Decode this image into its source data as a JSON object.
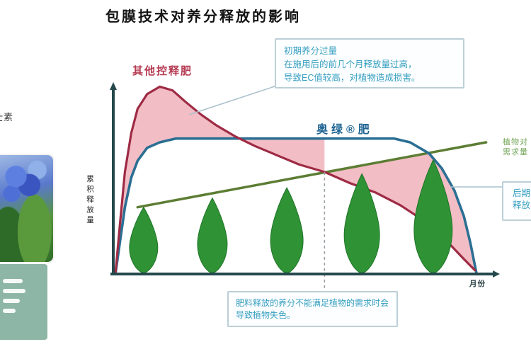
{
  "left_panel": {
    "partial_label": "壮素"
  },
  "chart": {
    "title": "包膜技术对养分释放的影响",
    "curve_labels": {
      "other_crf": "其他控释肥",
      "osmocote": "奥绿®肥"
    },
    "demand_label_lines": [
      "植物对",
      "需求量"
    ],
    "axis": {
      "y_label": "累积释放量",
      "x_label": "月份"
    },
    "callouts": {
      "top": [
        "初期养分过量",
        "在施用后的前几个月释放量过高，",
        "导致EC值较高，对植物造成损害。"
      ],
      "bottom": [
        "肥料释放的养分不能满足植物的需求时会",
        "导致植物失色。"
      ],
      "right": [
        "后期",
        "释放"
      ]
    }
  },
  "chart_data": {
    "type": "area",
    "title": "包膜技术对养分释放的影响",
    "xlabel": "月份",
    "ylabel": "累积释放量",
    "xlim": [
      0,
      12
    ],
    "ylim": [
      0,
      105
    ],
    "grid": false,
    "legend_position": "inline-labels",
    "series": [
      {
        "name": "其他控释肥",
        "color": "#9e2b44",
        "points": [
          [
            0,
            0
          ],
          [
            0.15,
            28
          ],
          [
            0.3,
            55
          ],
          [
            0.5,
            76
          ],
          [
            0.7,
            89
          ],
          [
            1.0,
            97
          ],
          [
            1.4,
            101
          ],
          [
            1.8,
            99
          ],
          [
            2.2,
            93
          ],
          [
            2.7,
            86
          ],
          [
            3.2,
            80
          ],
          [
            3.8,
            74
          ],
          [
            4.4,
            69
          ],
          [
            5.1,
            64
          ],
          [
            5.8,
            59
          ],
          [
            6.6,
            55
          ],
          [
            7.4,
            49
          ],
          [
            8.2,
            44
          ],
          [
            9.0,
            37
          ],
          [
            9.8,
            28
          ],
          [
            10.5,
            17
          ],
          [
            11.0,
            8
          ],
          [
            11.35,
            2
          ]
        ]
      },
      {
        "name": "奥绿®肥",
        "color": "#2b6f93",
        "points": [
          [
            0,
            0
          ],
          [
            0.15,
            18
          ],
          [
            0.3,
            36
          ],
          [
            0.5,
            52
          ],
          [
            0.7,
            61
          ],
          [
            1.0,
            68
          ],
          [
            1.4,
            71
          ],
          [
            1.9,
            73
          ],
          [
            2.5,
            73
          ],
          [
            8.8,
            73
          ],
          [
            9.3,
            71
          ],
          [
            9.9,
            65
          ],
          [
            10.3,
            57
          ],
          [
            10.7,
            45
          ],
          [
            11.0,
            31
          ],
          [
            11.2,
            17
          ],
          [
            11.4,
            0
          ]
        ]
      },
      {
        "name": "植物对养分的需求量",
        "color": "#5c7d33",
        "points": [
          [
            0.7,
            36
          ],
          [
            11.7,
            71
          ]
        ]
      }
    ],
    "fill_color": "#f3bdc5",
    "red_green_cross": {
      "month": 6.6,
      "value": 55
    },
    "green_blue_cross_month": 9.9,
    "trees": [
      {
        "month": 0.89,
        "top_pct": 36.0,
        "half_width": 20
      },
      {
        "month": 3.06,
        "top_pct": 41.0,
        "half_width": 21
      },
      {
        "month": 5.41,
        "top_pct": 46.5,
        "half_width": 23
      },
      {
        "month": 7.78,
        "top_pct": 54.0,
        "half_width": 25
      },
      {
        "month": 10.03,
        "top_pct": 61.5,
        "half_width": 27
      }
    ]
  }
}
